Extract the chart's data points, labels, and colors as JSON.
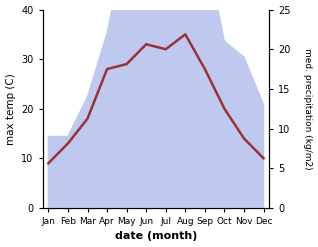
{
  "months": [
    "Jan",
    "Feb",
    "Mar",
    "Apr",
    "May",
    "Jun",
    "Jul",
    "Aug",
    "Sep",
    "Oct",
    "Nov",
    "Dec"
  ],
  "x": [
    0,
    1,
    2,
    3,
    4,
    5,
    6,
    7,
    8,
    9,
    10,
    11
  ],
  "temp": [
    9,
    13,
    18,
    28,
    29,
    33,
    32,
    35,
    28,
    20,
    14,
    10
  ],
  "precip": [
    9,
    9,
    14,
    22,
    34,
    37,
    34,
    39,
    33,
    21,
    19,
    13
  ],
  "temp_color": "#993333",
  "precip_fill_color": "#bfc8ef",
  "bg_color": "#ffffff",
  "xlabel": "date (month)",
  "ylabel_left": "max temp (C)",
  "ylabel_right": "med. precipitation (kg/m2)",
  "ylim_left": [
    0,
    40
  ],
  "ylim_right": [
    0,
    25
  ],
  "precip_scale": 1.6
}
